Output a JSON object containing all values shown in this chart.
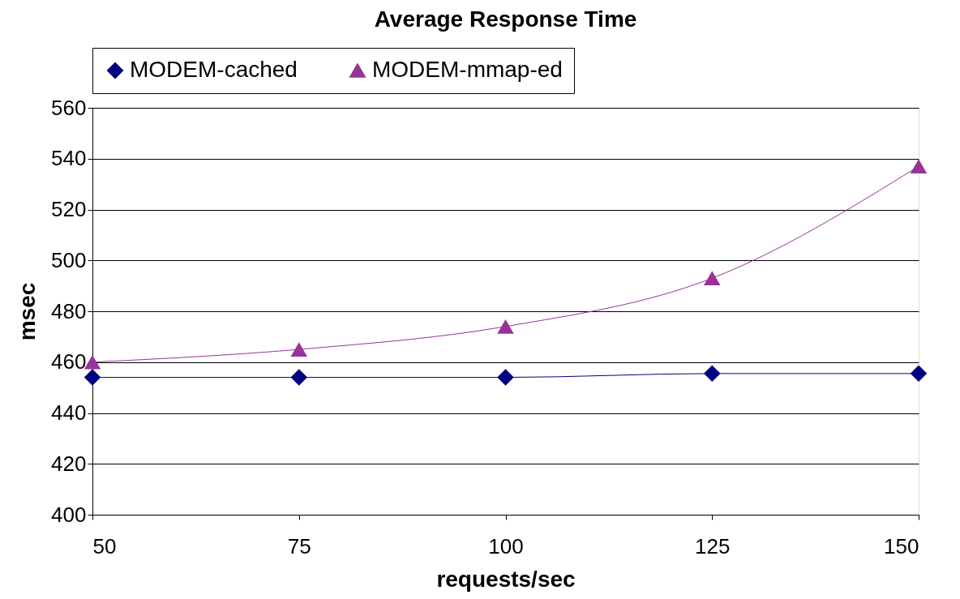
{
  "chart_data": {
    "type": "line",
    "title": "Average Response Time",
    "xlabel": "requests/sec",
    "ylabel": "msec",
    "x": [
      50,
      75,
      100,
      125,
      150
    ],
    "series": [
      {
        "name": "MODEM-cached",
        "color": "#000080",
        "marker": "diamond",
        "values": [
          454,
          454,
          454,
          455.5,
          455.5
        ]
      },
      {
        "name": "MODEM-mmap-ed",
        "color": "#993399",
        "marker": "triangle",
        "values": [
          460,
          465,
          474,
          493,
          537
        ]
      }
    ],
    "xlim": [
      50,
      150
    ],
    "xticks": [
      50,
      75,
      100,
      125,
      150
    ],
    "ylim": [
      400,
      560
    ],
    "yticks": [
      400,
      420,
      440,
      460,
      480,
      500,
      520,
      540,
      560
    ],
    "grid": "y",
    "legend": "top",
    "line_style": "solid"
  }
}
